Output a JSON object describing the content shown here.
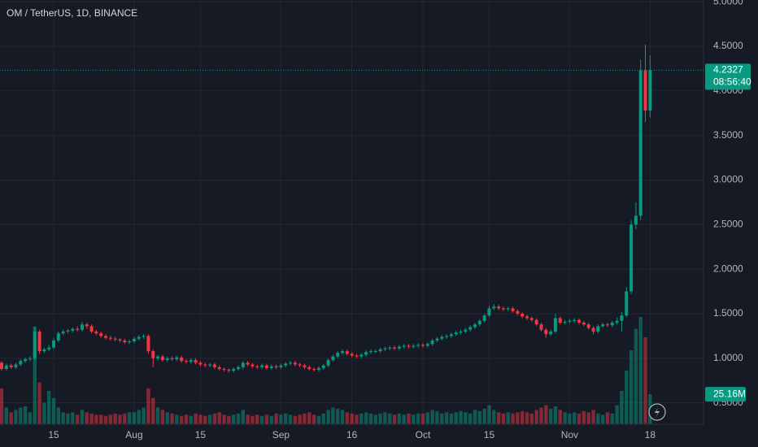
{
  "chart_data": {
    "type": "candlestick",
    "title": "OM / TetherUS, 1D, BINANCE",
    "up_color": "#089981",
    "down_color": "#f23645",
    "grid": true,
    "countdown": "08:56:40",
    "last_volume_label": "25.16M",
    "ylim": [
      0.26,
      5.02
    ],
    "yticks": [
      {
        "value": 0.5,
        "label": "0.5000"
      },
      {
        "value": 1,
        "label": "1.0000"
      },
      {
        "value": 1.5,
        "label": "1.5000"
      },
      {
        "value": 2,
        "label": "2.0000"
      },
      {
        "value": 2.5,
        "label": "2.5000"
      },
      {
        "value": 3,
        "label": "3.0000"
      },
      {
        "value": 3.5,
        "label": "3.5000"
      },
      {
        "value": 4,
        "label": "4.0000"
      },
      {
        "value": 4.5,
        "label": "4.5000"
      },
      {
        "value": 5,
        "label": "5.0000"
      }
    ],
    "xticks": [
      {
        "value": "Jul 15",
        "label": "15"
      },
      {
        "value": "Aug 1",
        "label": "Aug"
      },
      {
        "value": "Aug 15",
        "label": "15"
      },
      {
        "value": "Sep 1",
        "label": "Sep"
      },
      {
        "value": "Sep 16",
        "label": "16"
      },
      {
        "value": "Oct 1",
        "label": "Oct"
      },
      {
        "value": "Oct 15",
        "label": "15"
      },
      {
        "value": "Nov 1",
        "label": "Nov"
      },
      {
        "value": "Nov 18",
        "label": "18"
      }
    ],
    "categories": [
      "Jul 4",
      "Jul 5",
      "Jul 6",
      "Jul 7",
      "Jul 8",
      "Jul 9",
      "Jul 10",
      "Jul 11",
      "Jul 12",
      "Jul 13",
      "Jul 14",
      "Jul 15",
      "Jul 16",
      "Jul 17",
      "Jul 18",
      "Jul 19",
      "Jul 20",
      "Jul 21",
      "Jul 22",
      "Jul 23",
      "Jul 24",
      "Jul 25",
      "Jul 26",
      "Jul 27",
      "Jul 28",
      "Jul 29",
      "Jul 30",
      "Jul 31",
      "Aug 1",
      "Aug 2",
      "Aug 3",
      "Aug 4",
      "Aug 5",
      "Aug 6",
      "Aug 7",
      "Aug 8",
      "Aug 9",
      "Aug 10",
      "Aug 11",
      "Aug 12",
      "Aug 13",
      "Aug 14",
      "Aug 15",
      "Aug 16",
      "Aug 17",
      "Aug 18",
      "Aug 19",
      "Aug 20",
      "Aug 21",
      "Aug 22",
      "Aug 23",
      "Aug 24",
      "Aug 25",
      "Aug 26",
      "Aug 27",
      "Aug 28",
      "Aug 29",
      "Aug 30",
      "Aug 31",
      "Sep 1",
      "Sep 2",
      "Sep 3",
      "Sep 4",
      "Sep 5",
      "Sep 6",
      "Sep 7",
      "Sep 8",
      "Sep 9",
      "Sep 10",
      "Sep 11",
      "Sep 12",
      "Sep 13",
      "Sep 14",
      "Sep 15",
      "Sep 16",
      "Sep 17",
      "Sep 18",
      "Sep 19",
      "Sep 20",
      "Sep 21",
      "Sep 22",
      "Sep 23",
      "Sep 24",
      "Sep 25",
      "Sep 26",
      "Sep 27",
      "Sep 28",
      "Sep 29",
      "Sep 30",
      "Oct 1",
      "Oct 2",
      "Oct 3",
      "Oct 4",
      "Oct 5",
      "Oct 6",
      "Oct 7",
      "Oct 8",
      "Oct 9",
      "Oct 10",
      "Oct 11",
      "Oct 12",
      "Oct 13",
      "Oct 14",
      "Oct 15",
      "Oct 16",
      "Oct 17",
      "Oct 18",
      "Oct 19",
      "Oct 20",
      "Oct 21",
      "Oct 22",
      "Oct 23",
      "Oct 24",
      "Oct 25",
      "Oct 26",
      "Oct 27",
      "Oct 28",
      "Oct 29",
      "Oct 30",
      "Oct 31",
      "Nov 1",
      "Nov 2",
      "Nov 3",
      "Nov 4",
      "Nov 5",
      "Nov 6",
      "Nov 7",
      "Nov 8",
      "Nov 9",
      "Nov 10",
      "Nov 11",
      "Nov 12",
      "Nov 13",
      "Nov 14",
      "Nov 15",
      "Nov 16",
      "Nov 17",
      "Nov 18"
    ],
    "open": [
      0.95,
      0.88,
      0.92,
      0.9,
      0.93,
      0.97,
      0.99,
      1.0,
      1.3,
      1.08,
      1.1,
      1.12,
      1.2,
      1.28,
      1.3,
      1.31,
      1.33,
      1.32,
      1.38,
      1.36,
      1.3,
      1.28,
      1.25,
      1.23,
      1.22,
      1.21,
      1.2,
      1.18,
      1.19,
      1.22,
      1.24,
      1.25,
      1.08,
      1.0,
      1.02,
      0.98,
      1.0,
      0.99,
      1.01,
      0.97,
      0.96,
      0.98,
      0.95,
      0.93,
      0.92,
      0.93,
      0.9,
      0.88,
      0.87,
      0.86,
      0.88,
      0.9,
      0.95,
      0.93,
      0.91,
      0.9,
      0.92,
      0.89,
      0.91,
      0.9,
      0.92,
      0.94,
      0.95,
      0.93,
      0.92,
      0.9,
      0.88,
      0.87,
      0.89,
      0.92,
      0.98,
      1.02,
      1.06,
      1.08,
      1.05,
      1.03,
      1.02,
      1.04,
      1.07,
      1.08,
      1.08,
      1.1,
      1.11,
      1.12,
      1.11,
      1.13,
      1.14,
      1.13,
      1.14,
      1.15,
      1.14,
      1.16,
      1.2,
      1.22,
      1.24,
      1.25,
      1.27,
      1.29,
      1.3,
      1.32,
      1.35,
      1.38,
      1.42,
      1.48,
      1.56,
      1.58,
      1.56,
      1.55,
      1.56,
      1.53,
      1.5,
      1.47,
      1.45,
      1.43,
      1.38,
      1.32,
      1.27,
      1.3,
      1.45,
      1.4,
      1.41,
      1.42,
      1.43,
      1.4,
      1.38,
      1.34,
      1.3,
      1.36,
      1.38,
      1.37,
      1.4,
      1.42,
      1.48,
      1.75,
      2.5,
      2.6,
      4.23,
      3.78
    ],
    "high": [
      0.97,
      0.94,
      0.94,
      0.95,
      0.99,
      1.01,
      1.02,
      1.35,
      1.32,
      1.12,
      1.15,
      1.23,
      1.3,
      1.32,
      1.33,
      1.35,
      1.36,
      1.41,
      1.4,
      1.38,
      1.32,
      1.3,
      1.27,
      1.25,
      1.24,
      1.23,
      1.22,
      1.21,
      1.24,
      1.26,
      1.27,
      1.27,
      1.1,
      1.04,
      1.04,
      1.02,
      1.02,
      1.03,
      1.03,
      0.99,
      1.0,
      1.0,
      0.97,
      0.95,
      0.95,
      0.95,
      0.92,
      0.9,
      0.89,
      0.9,
      0.92,
      0.97,
      0.97,
      0.95,
      0.93,
      0.94,
      0.94,
      0.93,
      0.93,
      0.94,
      0.96,
      0.97,
      0.97,
      0.95,
      0.94,
      0.92,
      0.9,
      0.91,
      0.94,
      1.0,
      1.04,
      1.08,
      1.1,
      1.1,
      1.07,
      1.05,
      1.06,
      1.09,
      1.1,
      1.1,
      1.12,
      1.13,
      1.14,
      1.14,
      1.15,
      1.16,
      1.16,
      1.16,
      1.17,
      1.17,
      1.18,
      1.22,
      1.24,
      1.26,
      1.27,
      1.29,
      1.31,
      1.32,
      1.34,
      1.37,
      1.4,
      1.44,
      1.5,
      1.59,
      1.61,
      1.6,
      1.58,
      1.58,
      1.58,
      1.55,
      1.52,
      1.49,
      1.47,
      1.45,
      1.4,
      1.34,
      1.32,
      1.5,
      1.47,
      1.43,
      1.44,
      1.45,
      1.45,
      1.42,
      1.4,
      1.36,
      1.38,
      1.4,
      1.4,
      1.42,
      1.46,
      1.52,
      1.8,
      2.55,
      2.75,
      4.35,
      4.52,
      4.4
    ],
    "low": [
      0.86,
      0.86,
      0.88,
      0.88,
      0.91,
      0.95,
      0.97,
      0.98,
      1.05,
      1.06,
      1.08,
      1.1,
      1.18,
      1.26,
      1.28,
      1.29,
      1.3,
      1.3,
      1.33,
      1.28,
      1.26,
      1.23,
      1.21,
      1.2,
      1.19,
      1.18,
      1.16,
      1.16,
      1.17,
      1.2,
      1.22,
      1.05,
      0.9,
      0.98,
      0.96,
      0.96,
      0.97,
      0.97,
      0.95,
      0.94,
      0.94,
      0.93,
      0.91,
      0.9,
      0.9,
      0.88,
      0.86,
      0.85,
      0.84,
      0.84,
      0.86,
      0.88,
      0.91,
      0.89,
      0.88,
      0.88,
      0.87,
      0.87,
      0.88,
      0.88,
      0.9,
      0.92,
      0.91,
      0.9,
      0.88,
      0.86,
      0.85,
      0.85,
      0.87,
      0.9,
      0.96,
      1.0,
      1.04,
      1.03,
      1.01,
      1.0,
      1.0,
      1.02,
      1.05,
      1.06,
      1.06,
      1.08,
      1.09,
      1.09,
      1.09,
      1.11,
      1.11,
      1.11,
      1.12,
      1.12,
      1.12,
      1.14,
      1.18,
      1.2,
      1.22,
      1.23,
      1.25,
      1.27,
      1.28,
      1.3,
      1.33,
      1.36,
      1.4,
      1.46,
      1.54,
      1.54,
      1.53,
      1.53,
      1.51,
      1.48,
      1.45,
      1.43,
      1.41,
      1.36,
      1.3,
      1.23,
      1.25,
      1.28,
      1.38,
      1.38,
      1.39,
      1.4,
      1.38,
      1.36,
      1.32,
      1.27,
      1.28,
      1.34,
      1.35,
      1.35,
      1.38,
      1.3,
      1.46,
      1.72,
      2.45,
      2.55,
      3.65,
      3.7
    ],
    "close": [
      0.88,
      0.92,
      0.9,
      0.93,
      0.97,
      0.99,
      1.0,
      1.3,
      1.08,
      1.1,
      1.12,
      1.2,
      1.28,
      1.3,
      1.31,
      1.33,
      1.32,
      1.38,
      1.36,
      1.3,
      1.28,
      1.25,
      1.23,
      1.22,
      1.21,
      1.2,
      1.18,
      1.19,
      1.22,
      1.24,
      1.25,
      1.08,
      1.0,
      1.02,
      0.98,
      1.0,
      0.99,
      1.01,
      0.97,
      0.96,
      0.98,
      0.95,
      0.93,
      0.92,
      0.93,
      0.9,
      0.88,
      0.87,
      0.86,
      0.88,
      0.9,
      0.95,
      0.93,
      0.91,
      0.9,
      0.92,
      0.89,
      0.91,
      0.9,
      0.92,
      0.94,
      0.95,
      0.93,
      0.92,
      0.9,
      0.88,
      0.87,
      0.89,
      0.92,
      0.98,
      1.02,
      1.06,
      1.08,
      1.05,
      1.03,
      1.02,
      1.04,
      1.07,
      1.08,
      1.08,
      1.1,
      1.11,
      1.12,
      1.11,
      1.13,
      1.14,
      1.13,
      1.14,
      1.15,
      1.14,
      1.16,
      1.2,
      1.22,
      1.24,
      1.25,
      1.27,
      1.29,
      1.3,
      1.32,
      1.35,
      1.38,
      1.42,
      1.48,
      1.56,
      1.58,
      1.56,
      1.55,
      1.56,
      1.53,
      1.5,
      1.47,
      1.45,
      1.43,
      1.38,
      1.32,
      1.27,
      1.3,
      1.45,
      1.4,
      1.41,
      1.42,
      1.43,
      1.4,
      1.38,
      1.34,
      1.3,
      1.36,
      1.38,
      1.37,
      1.4,
      1.42,
      1.48,
      1.75,
      2.5,
      2.6,
      4.23,
      3.78,
      4.2327
    ],
    "volume": [
      30,
      14,
      10,
      12,
      14,
      15,
      10,
      82,
      35,
      18,
      28,
      22,
      14,
      10,
      9,
      10,
      8,
      12,
      10,
      9,
      8,
      8,
      7,
      8,
      9,
      8,
      9,
      10,
      10,
      12,
      14,
      30,
      22,
      14,
      12,
      10,
      9,
      8,
      7,
      8,
      7,
      9,
      8,
      7,
      8,
      9,
      10,
      8,
      7,
      8,
      9,
      12,
      8,
      7,
      8,
      7,
      8,
      7,
      9,
      8,
      9,
      8,
      7,
      8,
      9,
      10,
      8,
      7,
      9,
      12,
      14,
      13,
      12,
      10,
      9,
      8,
      9,
      10,
      9,
      8,
      9,
      10,
      9,
      8,
      9,
      8,
      9,
      8,
      9,
      9,
      10,
      12,
      11,
      9,
      10,
      9,
      10,
      11,
      10,
      9,
      12,
      11,
      13,
      16,
      12,
      10,
      9,
      10,
      9,
      10,
      11,
      10,
      9,
      12,
      14,
      16,
      13,
      15,
      12,
      10,
      9,
      10,
      9,
      11,
      10,
      12,
      9,
      8,
      10,
      9,
      16,
      28,
      45,
      62,
      80,
      90,
      73,
      25.16
    ]
  }
}
